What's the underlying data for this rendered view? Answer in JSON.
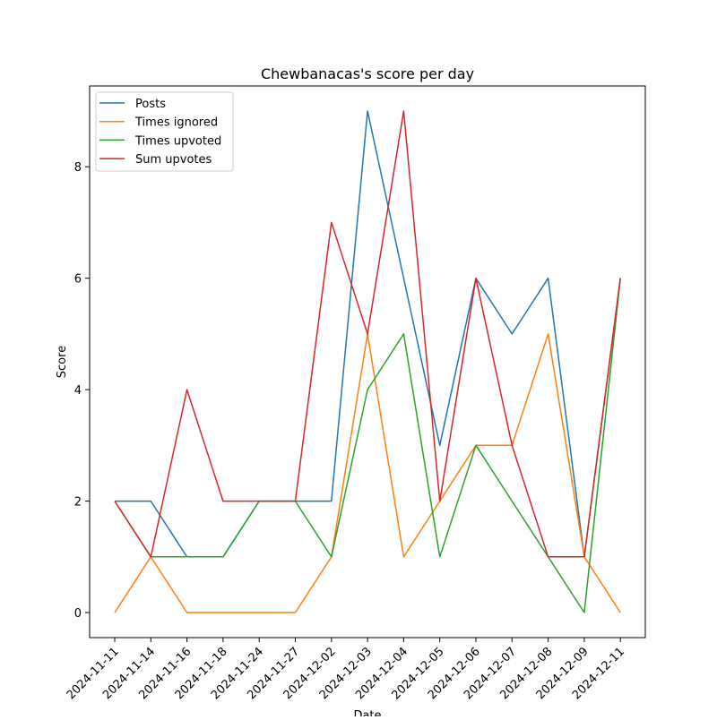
{
  "chart_data": {
    "type": "line",
    "title": "Chewbanacas's score per day",
    "xlabel": "Date",
    "ylabel": "Score",
    "categories": [
      "2024-11-11",
      "2024-11-14",
      "2024-11-16",
      "2024-11-18",
      "2024-11-24",
      "2024-11-27",
      "2024-12-02",
      "2024-12-03",
      "2024-12-04",
      "2024-12-05",
      "2024-12-06",
      "2024-12-07",
      "2024-12-08",
      "2024-12-09",
      "2024-12-11"
    ],
    "ylim": [
      -0.45,
      9.45
    ],
    "yticks": [
      0,
      2,
      4,
      6,
      8
    ],
    "grid": false,
    "legend_position": "top-left",
    "series": [
      {
        "name": "Posts",
        "color": "#1f77b4",
        "values": [
          2,
          2,
          1,
          1,
          2,
          2,
          2,
          9,
          6,
          3,
          6,
          5,
          6,
          1,
          6
        ]
      },
      {
        "name": "Times ignored",
        "color": "#ff7f0e",
        "values": [
          0,
          1,
          0,
          0,
          0,
          0,
          1,
          5,
          1,
          2,
          3,
          3,
          5,
          1,
          0
        ]
      },
      {
        "name": "Times upvoted",
        "color": "#2ca02c",
        "values": [
          2,
          1,
          1,
          1,
          2,
          2,
          1,
          4,
          5,
          1,
          3,
          2,
          1,
          0,
          6
        ]
      },
      {
        "name": "Sum upvotes",
        "color": "#d62728",
        "values": [
          2,
          1,
          4,
          2,
          2,
          2,
          7,
          5,
          9,
          2,
          6,
          3,
          1,
          1,
          6
        ]
      }
    ]
  }
}
